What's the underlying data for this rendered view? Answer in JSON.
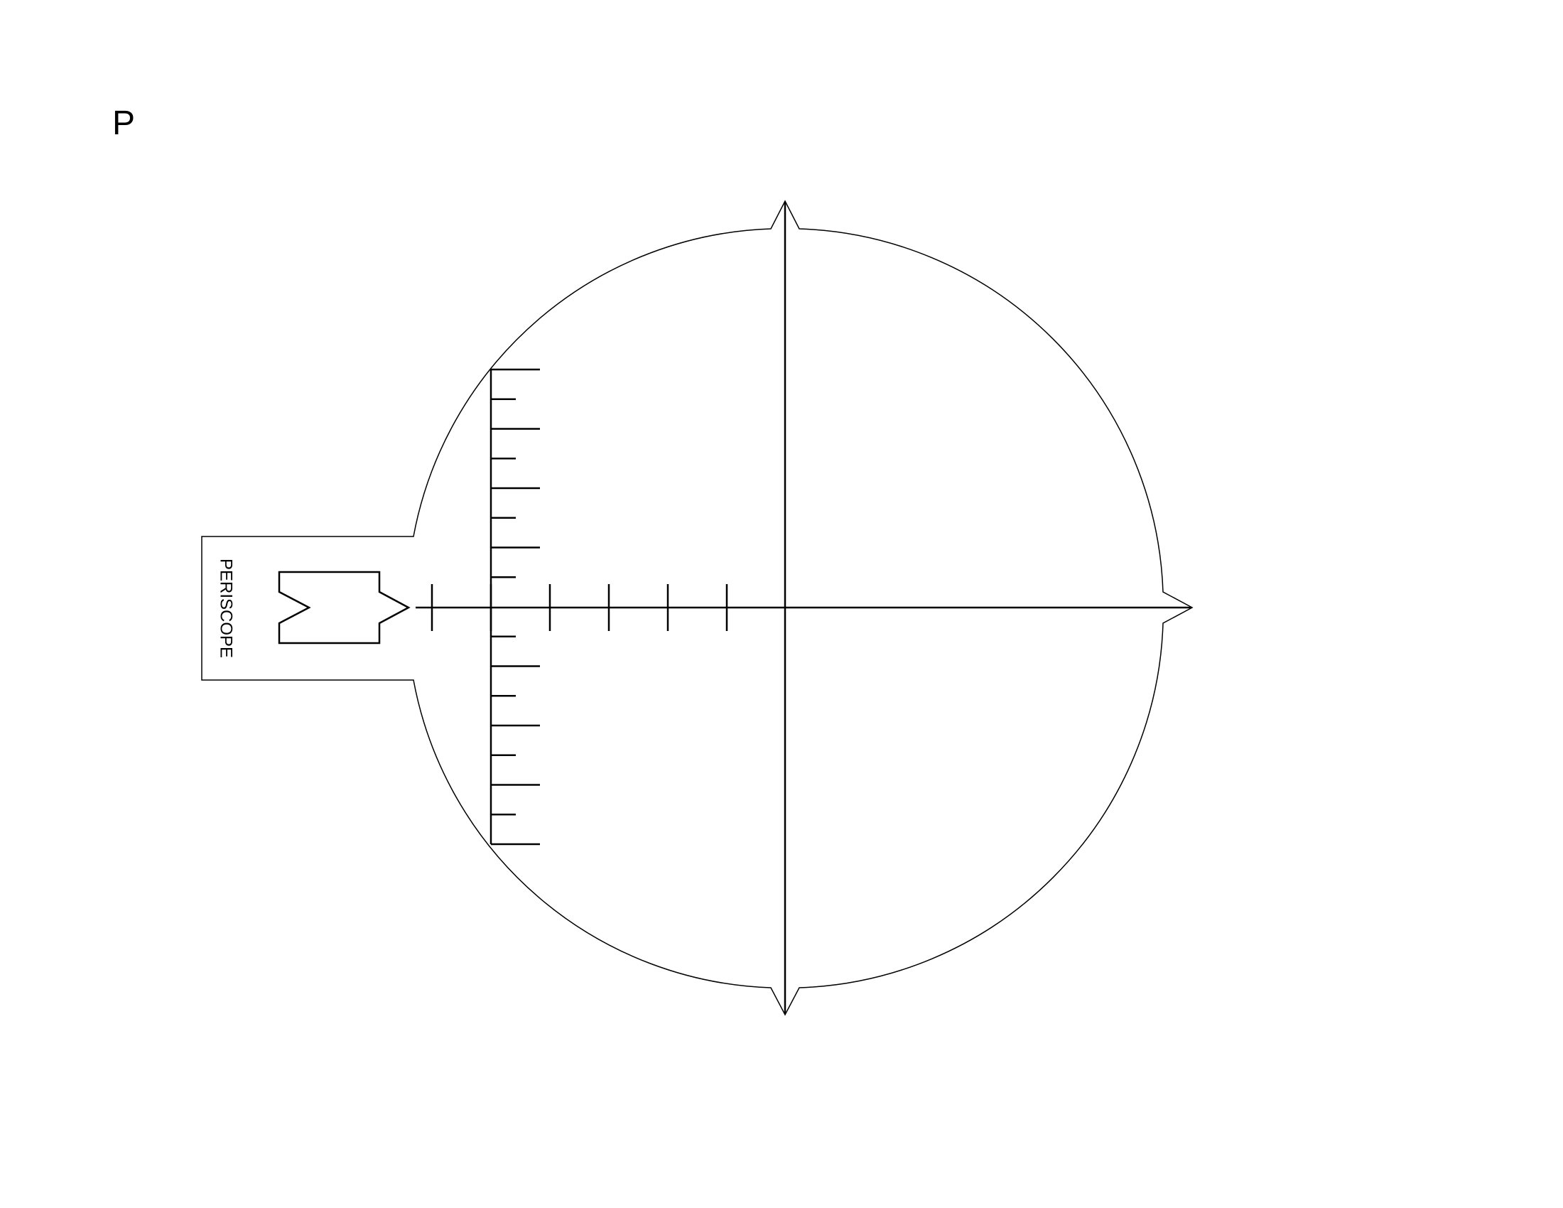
{
  "page": {
    "letter": "P"
  },
  "handle": {
    "label": "PERISCOPE",
    "icon": "submarine-arrow-icon"
  },
  "scale": {
    "vertical_major_ticks": 9,
    "vertical_minor_ticks": 8,
    "horizontal_ticks": 6
  }
}
